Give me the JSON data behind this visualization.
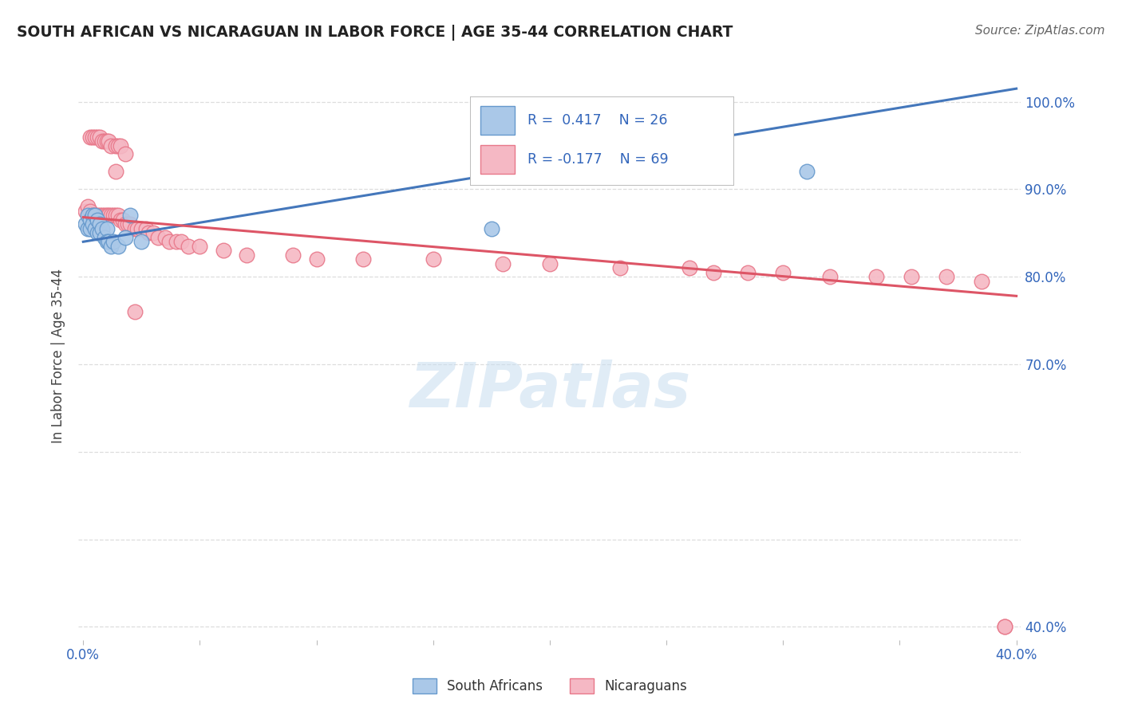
{
  "title": "SOUTH AFRICAN VS NICARAGUAN IN LABOR FORCE | AGE 35-44 CORRELATION CHART",
  "source": "Source: ZipAtlas.com",
  "ylabel_label": "In Labor Force | Age 35-44",
  "watermark": "ZIPatlas",
  "xmin": -0.002,
  "xmax": 0.402,
  "ymin": 0.385,
  "ymax": 1.035,
  "xtick_positions": [
    0.0,
    0.05,
    0.1,
    0.15,
    0.2,
    0.25,
    0.3,
    0.35,
    0.4
  ],
  "xtick_labels": [
    "0.0%",
    "",
    "",
    "",
    "",
    "",
    "",
    "",
    "40.0%"
  ],
  "right_yticks": [
    0.4,
    0.7,
    0.8,
    0.9,
    1.0
  ],
  "right_ytick_labels": [
    "40.0%",
    "70.0%",
    "80.0%",
    "90.0%",
    "100.0%"
  ],
  "grid_yticks": [
    0.4,
    0.5,
    0.6,
    0.7,
    0.8,
    0.9,
    1.0
  ],
  "blue_R": 0.417,
  "blue_N": 26,
  "pink_R": -0.177,
  "pink_N": 69,
  "blue_color": "#aac8e8",
  "pink_color": "#f5b8c4",
  "blue_edge_color": "#6699cc",
  "pink_edge_color": "#e8788a",
  "blue_line_color": "#4477bb",
  "pink_line_color": "#dd5566",
  "legend_text_color": "#3366bb",
  "grid_color": "#dddddd",
  "background_color": "#ffffff",
  "south_african_x": [
    0.001,
    0.002,
    0.002,
    0.003,
    0.003,
    0.004,
    0.004,
    0.005,
    0.005,
    0.006,
    0.006,
    0.007,
    0.007,
    0.008,
    0.009,
    0.01,
    0.01,
    0.011,
    0.012,
    0.013,
    0.015,
    0.018,
    0.02,
    0.025,
    0.175,
    0.31
  ],
  "south_african_y": [
    0.86,
    0.87,
    0.855,
    0.865,
    0.855,
    0.87,
    0.86,
    0.87,
    0.855,
    0.865,
    0.85,
    0.86,
    0.85,
    0.855,
    0.845,
    0.855,
    0.84,
    0.84,
    0.835,
    0.84,
    0.835,
    0.845,
    0.87,
    0.84,
    0.855,
    0.92
  ],
  "nicaraguan_x": [
    0.001,
    0.002,
    0.003,
    0.003,
    0.004,
    0.004,
    0.005,
    0.005,
    0.006,
    0.006,
    0.007,
    0.007,
    0.008,
    0.008,
    0.009,
    0.009,
    0.01,
    0.01,
    0.011,
    0.011,
    0.012,
    0.012,
    0.013,
    0.014,
    0.014,
    0.015,
    0.015,
    0.016,
    0.016,
    0.017,
    0.018,
    0.019,
    0.02,
    0.022,
    0.023,
    0.025,
    0.027,
    0.028,
    0.03,
    0.032,
    0.035,
    0.037,
    0.04,
    0.042,
    0.045,
    0.05,
    0.06,
    0.07,
    0.09,
    0.1,
    0.12,
    0.15,
    0.18,
    0.2,
    0.23,
    0.26,
    0.27,
    0.285,
    0.3,
    0.32,
    0.34,
    0.355,
    0.37,
    0.385,
    0.395,
    0.014,
    0.018,
    0.022,
    0.395
  ],
  "nicaraguan_y": [
    0.875,
    0.88,
    0.875,
    0.96,
    0.87,
    0.96,
    0.87,
    0.96,
    0.87,
    0.96,
    0.87,
    0.96,
    0.87,
    0.955,
    0.87,
    0.955,
    0.87,
    0.955,
    0.87,
    0.955,
    0.87,
    0.95,
    0.87,
    0.87,
    0.95,
    0.87,
    0.95,
    0.865,
    0.95,
    0.865,
    0.86,
    0.86,
    0.86,
    0.855,
    0.855,
    0.855,
    0.855,
    0.85,
    0.85,
    0.845,
    0.845,
    0.84,
    0.84,
    0.84,
    0.835,
    0.835,
    0.83,
    0.825,
    0.825,
    0.82,
    0.82,
    0.82,
    0.815,
    0.815,
    0.81,
    0.81,
    0.805,
    0.805,
    0.805,
    0.8,
    0.8,
    0.8,
    0.8,
    0.795,
    0.4,
    0.92,
    0.94,
    0.76,
    0.4
  ],
  "blue_line_x": [
    0.0,
    0.4
  ],
  "blue_line_y": [
    0.84,
    1.015
  ],
  "pink_line_x": [
    0.0,
    0.4
  ],
  "pink_line_y": [
    0.868,
    0.778
  ]
}
